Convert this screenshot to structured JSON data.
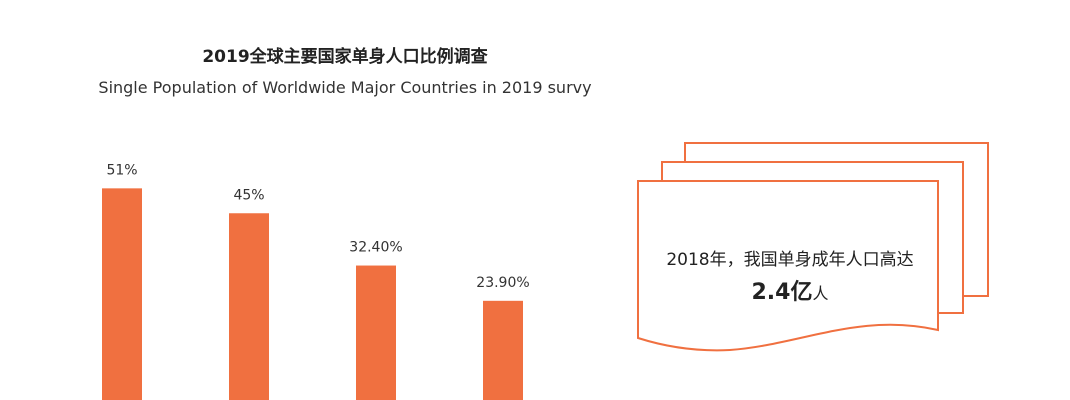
{
  "chart_data": {
    "type": "bar",
    "title": "2019全球主要国家单身人口比例调查",
    "subtitle": "Single Population of Worldwide Major Countries in 2019 survy",
    "values": [
      51,
      45,
      32.4,
      23.9
    ],
    "value_labels": [
      "51%",
      "45%",
      "32.40%",
      "23.90%"
    ],
    "bar_color": "#f07040",
    "ylim": [
      0,
      60
    ]
  },
  "note": {
    "line1": "2018年，我国单身成年人口高达",
    "big_value": "2.4亿",
    "unit": "人",
    "border_color": "#f07040"
  }
}
